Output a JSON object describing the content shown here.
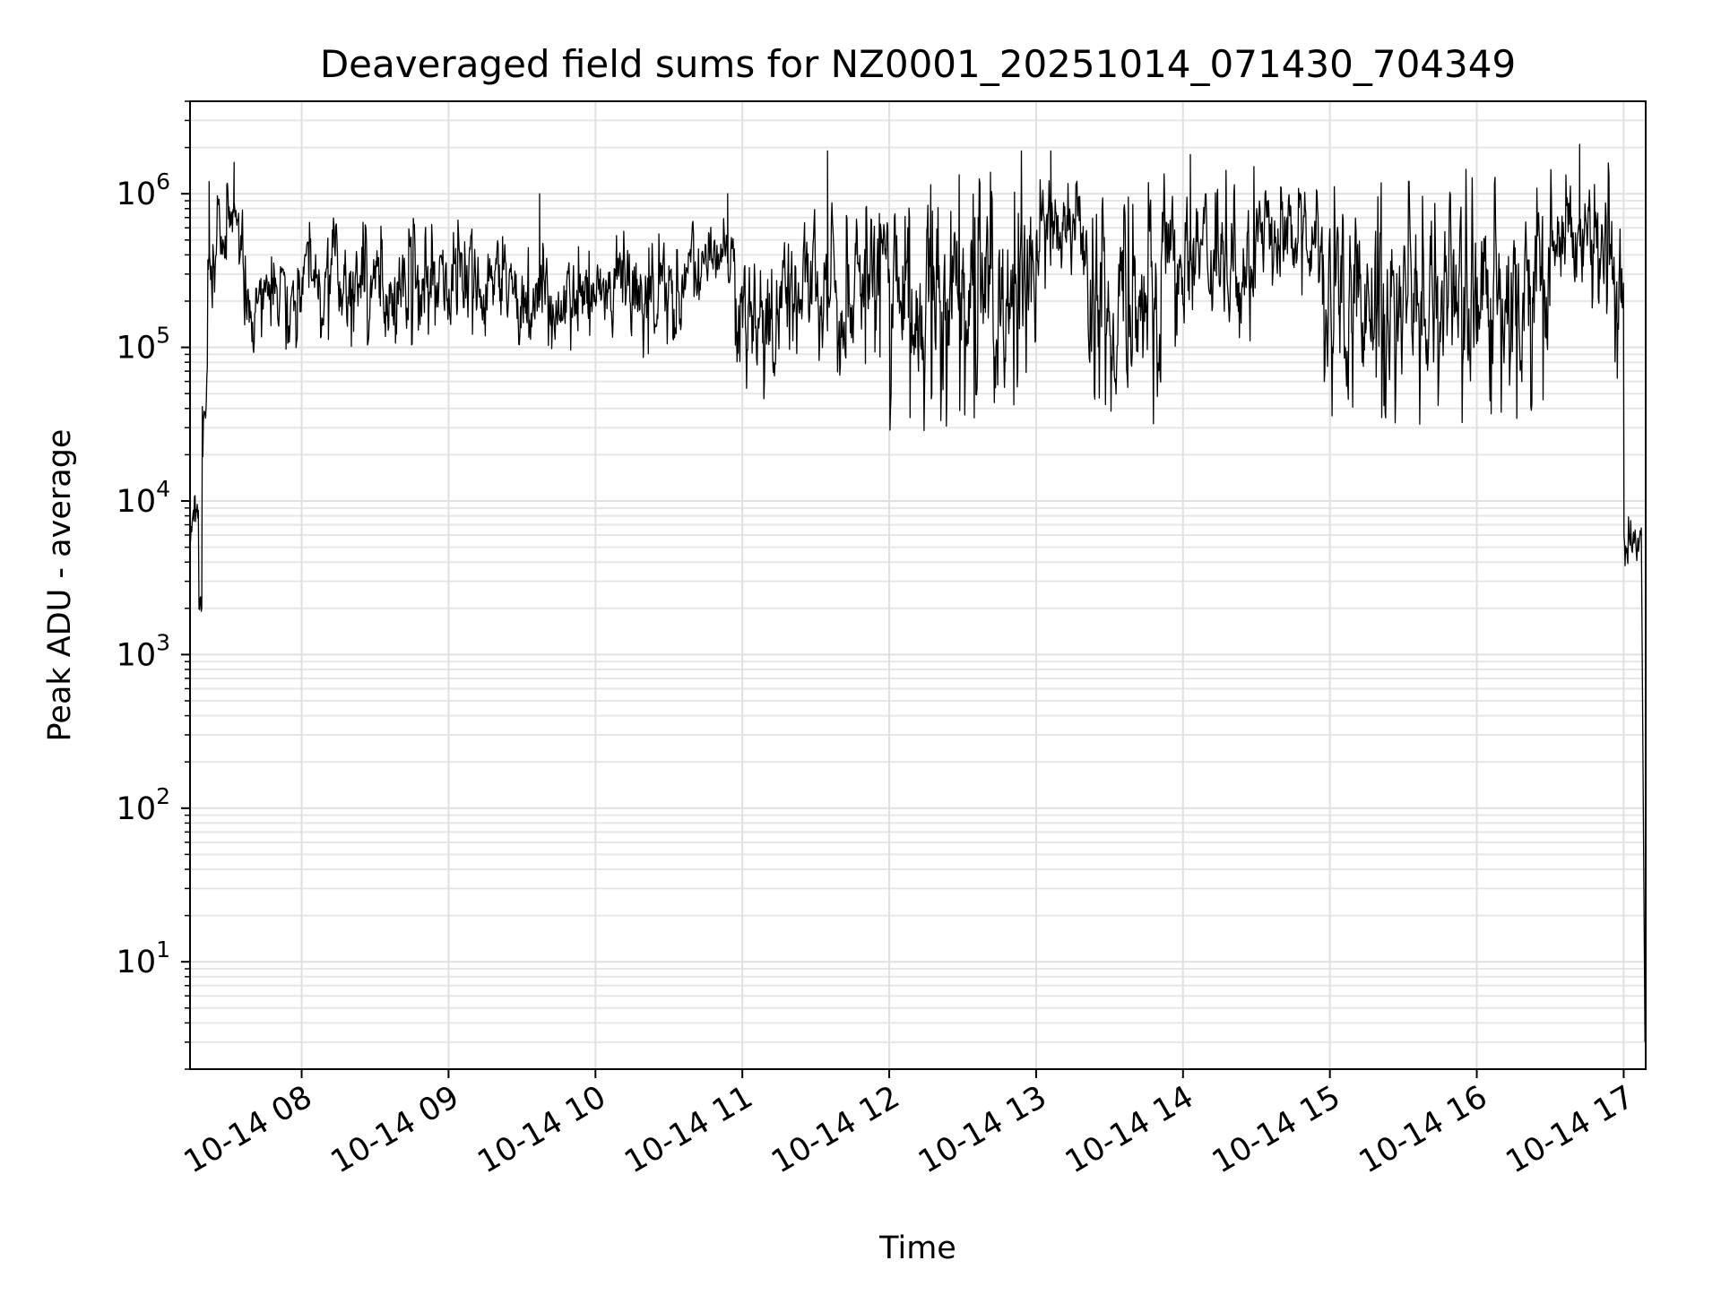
{
  "chart_data": {
    "type": "line",
    "title": "Deaveraged field sums for NZ0001_20251014_071430_704349",
    "xlabel": "Time",
    "ylabel": "Peak ADU - average",
    "yscale": "log",
    "ylim": [
      2,
      4000000
    ],
    "xlim_hours": [
      7.24,
      17.15
    ],
    "grid": true,
    "grid_minor": true,
    "x_ticks": [
      {
        "hour": 8,
        "label": "10-14 08"
      },
      {
        "hour": 9,
        "label": "10-14 09"
      },
      {
        "hour": 10,
        "label": "10-14 10"
      },
      {
        "hour": 11,
        "label": "10-14 11"
      },
      {
        "hour": 12,
        "label": "10-14 12"
      },
      {
        "hour": 13,
        "label": "10-14 13"
      },
      {
        "hour": 14,
        "label": "10-14 14"
      },
      {
        "hour": 15,
        "label": "10-14 15"
      },
      {
        "hour": 16,
        "label": "10-14 16"
      },
      {
        "hour": 17,
        "label": "10-14 17"
      }
    ],
    "y_ticks": [
      {
        "exp": 1,
        "base": "10",
        "sup": "1"
      },
      {
        "exp": 2,
        "base": "10",
        "sup": "2"
      },
      {
        "exp": 3,
        "base": "10",
        "sup": "3"
      },
      {
        "exp": 4,
        "base": "10",
        "sup": "4"
      },
      {
        "exp": 5,
        "base": "10",
        "sup": "5"
      },
      {
        "exp": 6,
        "base": "10",
        "sup": "6"
      }
    ],
    "series": [
      {
        "name": "peak_adu_minus_average",
        "color": "#000000",
        "segments": [
          {
            "t0": 7.24,
            "t1": 7.3,
            "lo": 4000,
            "hi": 12000
          },
          {
            "t0": 7.3,
            "t1": 7.32,
            "lo": 1400,
            "hi": 3000
          },
          {
            "t0": 7.32,
            "t1": 7.36,
            "lo": 17000,
            "hi": 120000
          },
          {
            "t0": 7.36,
            "t1": 7.42,
            "lo": 120000,
            "hi": 600000
          },
          {
            "t0": 7.42,
            "t1": 7.6,
            "lo": 300000,
            "hi": 1200000
          },
          {
            "t0": 7.6,
            "t1": 8.0,
            "lo": 90000,
            "hi": 400000
          },
          {
            "t0": 8.0,
            "t1": 9.0,
            "lo": 100000,
            "hi": 700000
          },
          {
            "t0": 9.0,
            "t1": 9.4,
            "lo": 100000,
            "hi": 700000
          },
          {
            "t0": 9.4,
            "t1": 10.0,
            "lo": 90000,
            "hi": 500000
          },
          {
            "t0": 10.0,
            "t1": 10.6,
            "lo": 80000,
            "hi": 600000
          },
          {
            "t0": 10.6,
            "t1": 10.95,
            "lo": 200000,
            "hi": 700000
          },
          {
            "t0": 10.95,
            "t1": 11.4,
            "lo": 40000,
            "hi": 800000
          },
          {
            "t0": 11.4,
            "t1": 12.0,
            "lo": 60000,
            "hi": 900000
          },
          {
            "t0": 12.0,
            "t1": 12.8,
            "lo": 28000,
            "hi": 1500000
          },
          {
            "t0": 12.8,
            "t1": 13.0,
            "lo": 40000,
            "hi": 1500000
          },
          {
            "t0": 13.0,
            "t1": 13.35,
            "lo": 200000,
            "hi": 1500000
          },
          {
            "t0": 13.35,
            "t1": 13.85,
            "lo": 28000,
            "hi": 1300000
          },
          {
            "t0": 13.85,
            "t1": 14.5,
            "lo": 100000,
            "hi": 1700000
          },
          {
            "t0": 14.5,
            "t1": 14.95,
            "lo": 200000,
            "hi": 1400000
          },
          {
            "t0": 14.95,
            "t1": 15.4,
            "lo": 30000,
            "hi": 1400000
          },
          {
            "t0": 15.4,
            "t1": 16.5,
            "lo": 30000,
            "hi": 1500000
          },
          {
            "t0": 16.5,
            "t1": 16.9,
            "lo": 150000,
            "hi": 1600000
          },
          {
            "t0": 16.9,
            "t1": 17.0,
            "lo": 60000,
            "hi": 800000
          },
          {
            "t0": 17.0,
            "t1": 17.12,
            "lo": 3500,
            "hi": 8000
          }
        ],
        "spikes": [
          {
            "t": 7.37,
            "v": 1200000
          },
          {
            "t": 7.54,
            "v": 1600000
          },
          {
            "t": 9.62,
            "v": 1000000
          },
          {
            "t": 10.9,
            "v": 1000000
          },
          {
            "t": 11.58,
            "v": 1900000
          },
          {
            "t": 12.9,
            "v": 1900000
          },
          {
            "t": 13.1,
            "v": 1900000
          },
          {
            "t": 14.05,
            "v": 1800000
          },
          {
            "t": 16.7,
            "v": 2100000
          }
        ],
        "end_value": 3
      }
    ]
  }
}
